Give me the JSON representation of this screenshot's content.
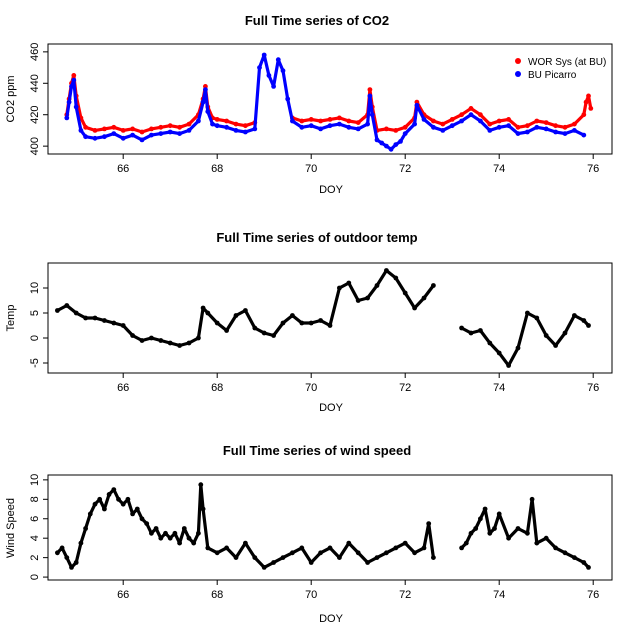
{
  "chart_data": [
    {
      "type": "scatter",
      "title": "Full Time series of CO2",
      "xlabel": "DOY",
      "ylabel": "CO2 ppm",
      "xlim": [
        64.4,
        76.4
      ],
      "ylim": [
        395,
        465
      ],
      "x_ticks": [
        66,
        68,
        70,
        72,
        74,
        76
      ],
      "y_ticks": [
        400,
        420,
        440,
        460
      ],
      "grid": false,
      "legend": {
        "position": "top-right"
      },
      "series": [
        {
          "name": "WOR Sys (at BU)",
          "color": "#ff0000",
          "x": [
            64.8,
            64.85,
            64.9,
            64.95,
            65.0,
            65.1,
            65.2,
            65.4,
            65.6,
            65.8,
            66.0,
            66.2,
            66.4,
            66.6,
            66.8,
            67.0,
            67.2,
            67.4,
            67.6,
            67.7,
            67.75,
            67.8,
            67.9,
            68.0,
            68.2,
            68.4,
            68.6,
            68.8,
            69.6,
            69.8,
            70.0,
            70.2,
            70.4,
            70.6,
            70.8,
            71.0,
            71.2,
            71.25,
            71.3,
            71.4,
            71.6,
            71.8,
            72.0,
            72.2,
            72.25,
            72.4,
            72.6,
            72.8,
            73.0,
            73.2,
            73.4,
            73.6,
            73.8,
            74.0,
            74.2,
            74.4,
            74.6,
            74.8,
            75.0,
            75.2,
            75.4,
            75.6,
            75.8,
            75.85,
            75.9,
            75.95
          ],
          "y": [
            420,
            430,
            440,
            445,
            432,
            418,
            412,
            410,
            411,
            412,
            410,
            411,
            409,
            411,
            412,
            413,
            412,
            414,
            420,
            430,
            438,
            425,
            418,
            417,
            416,
            414,
            413,
            415,
            418,
            416,
            417,
            416,
            417,
            418,
            416,
            415,
            420,
            436,
            425,
            410,
            411,
            410,
            412,
            418,
            428,
            420,
            416,
            414,
            417,
            420,
            424,
            420,
            414,
            416,
            417,
            412,
            413,
            416,
            415,
            413,
            412,
            414,
            420,
            428,
            432,
            424
          ]
        },
        {
          "name": "BU Picarro",
          "color": "#0000ff",
          "x": [
            64.8,
            64.85,
            64.9,
            64.95,
            65.0,
            65.1,
            65.2,
            65.4,
            65.6,
            65.8,
            66.0,
            66.2,
            66.4,
            66.6,
            66.8,
            67.0,
            67.2,
            67.4,
            67.6,
            67.7,
            67.75,
            67.8,
            67.9,
            68.0,
            68.2,
            68.4,
            68.6,
            68.8,
            68.9,
            69.0,
            69.1,
            69.2,
            69.3,
            69.4,
            69.5,
            69.6,
            69.8,
            70.0,
            70.2,
            70.4,
            70.6,
            70.8,
            71.0,
            71.2,
            71.25,
            71.3,
            71.4,
            71.5,
            71.6,
            71.7,
            71.8,
            71.9,
            72.0,
            72.2,
            72.25,
            72.4,
            72.6,
            72.8,
            73.0,
            73.2,
            73.4,
            73.6,
            73.8,
            74.0,
            74.2,
            74.4,
            74.6,
            74.8,
            75.0,
            75.2,
            75.4,
            75.6,
            75.8
          ],
          "y": [
            418,
            428,
            438,
            442,
            425,
            410,
            406,
            405,
            406,
            408,
            405,
            407,
            404,
            407,
            408,
            409,
            408,
            410,
            416,
            428,
            436,
            422,
            414,
            413,
            412,
            410,
            409,
            411,
            450,
            458,
            445,
            438,
            455,
            448,
            430,
            416,
            412,
            413,
            411,
            413,
            414,
            412,
            411,
            414,
            432,
            420,
            404,
            402,
            400,
            398,
            401,
            403,
            408,
            414,
            426,
            417,
            412,
            410,
            413,
            416,
            420,
            416,
            410,
            412,
            413,
            408,
            409,
            412,
            411,
            409,
            408,
            410,
            407
          ]
        }
      ]
    },
    {
      "type": "scatter",
      "title": "Full Time series of outdoor temp",
      "xlabel": "DOY",
      "ylabel": "Temp",
      "xlim": [
        64.4,
        76.4
      ],
      "ylim": [
        -7,
        15
      ],
      "x_ticks": [
        66,
        68,
        70,
        72,
        74,
        76
      ],
      "y_ticks": [
        -5,
        0,
        5,
        10
      ],
      "grid": false,
      "series": [
        {
          "color": "#000000",
          "x": [
            64.6,
            64.8,
            65.0,
            65.2,
            65.4,
            65.6,
            65.8,
            66.0,
            66.2,
            66.4,
            66.6,
            66.8,
            67.0,
            67.2,
            67.4,
            67.6,
            67.7,
            67.8,
            68.0,
            68.2,
            68.4,
            68.6,
            68.8,
            69.0,
            69.2,
            69.4,
            69.6,
            69.8,
            70.0,
            70.2,
            70.4,
            70.6,
            70.8,
            71.0,
            71.2,
            71.4,
            71.6,
            71.8,
            72.0,
            72.2,
            72.4,
            72.6,
            73.2,
            73.4,
            73.6,
            73.8,
            74.0,
            74.2,
            74.4,
            74.6,
            74.8,
            75.0,
            75.2,
            75.4,
            75.6,
            75.8,
            75.9
          ],
          "y": [
            5.5,
            6.5,
            5.0,
            4.0,
            4.0,
            3.5,
            3.0,
            2.5,
            0.5,
            -0.5,
            0.0,
            -0.5,
            -1.0,
            -1.5,
            -1.0,
            0.0,
            6.0,
            5.0,
            3.0,
            1.5,
            4.5,
            5.5,
            2.0,
            1.0,
            0.5,
            3.0,
            4.5,
            3.0,
            3.0,
            3.5,
            2.5,
            10.0,
            11.0,
            7.5,
            8.0,
            10.5,
            13.5,
            12.0,
            9.0,
            6.0,
            8.0,
            10.5,
            2.0,
            1.0,
            1.5,
            -1.0,
            -3.0,
            -5.5,
            -2.0,
            5.0,
            4.0,
            0.5,
            -1.5,
            1.0,
            4.5,
            3.5,
            2.5
          ]
        }
      ]
    },
    {
      "type": "scatter",
      "title": "Full Time series of wind speed",
      "xlabel": "DOY",
      "ylabel": "Wind Speed",
      "xlim": [
        64.4,
        76.4
      ],
      "ylim": [
        -0.3,
        10.5
      ],
      "x_ticks": [
        66,
        68,
        70,
        72,
        74,
        76
      ],
      "y_ticks": [
        0,
        2,
        4,
        6,
        8,
        10
      ],
      "grid": false,
      "series": [
        {
          "color": "#000000",
          "x": [
            64.6,
            64.7,
            64.8,
            64.9,
            65.0,
            65.1,
            65.2,
            65.3,
            65.4,
            65.5,
            65.6,
            65.7,
            65.8,
            65.9,
            66.0,
            66.1,
            66.2,
            66.3,
            66.4,
            66.5,
            66.6,
            66.7,
            66.8,
            66.9,
            67.0,
            67.1,
            67.2,
            67.3,
            67.4,
            67.5,
            67.6,
            67.65,
            67.7,
            67.8,
            68.0,
            68.2,
            68.4,
            68.6,
            68.8,
            69.0,
            69.2,
            69.4,
            69.6,
            69.8,
            70.0,
            70.2,
            70.4,
            70.6,
            70.8,
            71.0,
            71.2,
            71.4,
            71.6,
            71.8,
            72.0,
            72.2,
            72.4,
            72.5,
            72.6,
            73.2,
            73.3,
            73.4,
            73.5,
            73.6,
            73.7,
            73.8,
            73.9,
            74.0,
            74.2,
            74.4,
            74.6,
            74.7,
            74.8,
            75.0,
            75.2,
            75.4,
            75.6,
            75.8,
            75.9
          ],
          "y": [
            2.5,
            3.0,
            2.0,
            1.0,
            1.5,
            3.5,
            5.0,
            6.5,
            7.5,
            8.0,
            7.0,
            8.5,
            9.0,
            8.0,
            7.5,
            8.0,
            6.5,
            7.0,
            6.0,
            5.5,
            4.5,
            5.0,
            4.0,
            4.5,
            4.0,
            4.5,
            3.5,
            5.0,
            4.0,
            3.5,
            4.5,
            9.5,
            7.0,
            3.0,
            2.5,
            3.0,
            2.0,
            3.5,
            2.0,
            1.0,
            1.5,
            2.0,
            2.5,
            3.0,
            1.5,
            2.5,
            3.0,
            2.0,
            3.5,
            2.5,
            1.5,
            2.0,
            2.5,
            3.0,
            3.5,
            2.5,
            3.0,
            5.5,
            2.0,
            3.0,
            3.5,
            4.5,
            5.0,
            6.0,
            7.0,
            4.5,
            5.0,
            6.5,
            4.0,
            5.0,
            4.5,
            8.0,
            3.5,
            4.0,
            3.0,
            2.5,
            2.0,
            1.5,
            1.0
          ]
        }
      ]
    }
  ]
}
